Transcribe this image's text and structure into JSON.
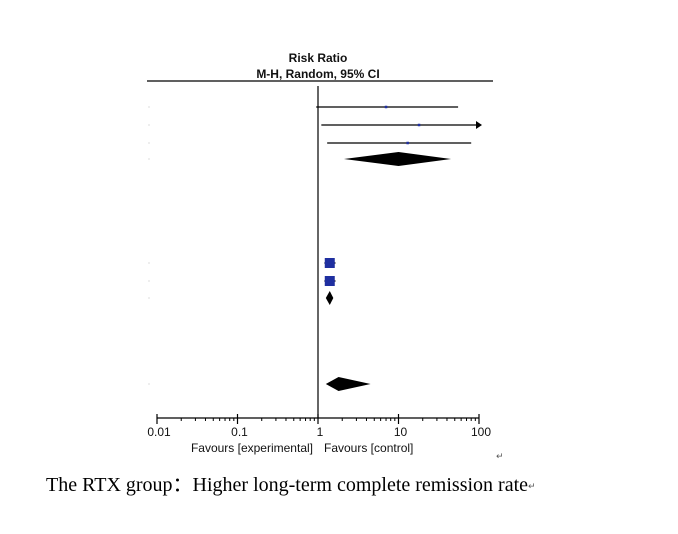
{
  "chart_data": {
    "type": "forest",
    "header": {
      "title": "Risk Ratio",
      "subtitle": "M-H, Random, 95% CI"
    },
    "x_scale": "log",
    "xlim": [
      0.01,
      100
    ],
    "ticks": [
      {
        "value": 0.01,
        "label": "0.01"
      },
      {
        "value": 0.1,
        "label": "0.1"
      },
      {
        "value": 1,
        "label": "1"
      },
      {
        "value": 10,
        "label": "10"
      },
      {
        "value": 100,
        "label": "100"
      }
    ],
    "reference_line": 1,
    "favours_left": "Favours [experimental]",
    "favours_right": "Favours [control]",
    "colors": {
      "study": "#1f2fa0",
      "pooled": "#000000",
      "line": "#000000"
    },
    "rows": [
      {
        "kind": "study",
        "estimate": 7,
        "ci": [
          0.95,
          55
        ],
        "marker": "small"
      },
      {
        "kind": "study",
        "estimate": 18,
        "ci": [
          1.1,
          100
        ],
        "arrow_right": true,
        "marker": "small"
      },
      {
        "kind": "study",
        "estimate": 13,
        "ci": [
          1.3,
          80
        ],
        "marker": "small"
      },
      {
        "kind": "pooled",
        "estimate": 10,
        "ci": [
          2.1,
          45
        ]
      },
      {
        "kind": "study",
        "estimate": 1.4,
        "ci": [
          1.2,
          1.65
        ],
        "marker": "large"
      },
      {
        "kind": "study",
        "estimate": 1.4,
        "ci": [
          1.2,
          1.65
        ],
        "marker": "large"
      },
      {
        "kind": "pooled",
        "estimate": 1.4,
        "ci": [
          1.25,
          1.55
        ]
      },
      {
        "kind": "pooled",
        "estimate": 1.8,
        "ci": [
          1.25,
          4.5
        ]
      }
    ]
  },
  "caption": {
    "text": "The RTX group：Higher long-term complete remission rate",
    "return_mark": "↵"
  }
}
